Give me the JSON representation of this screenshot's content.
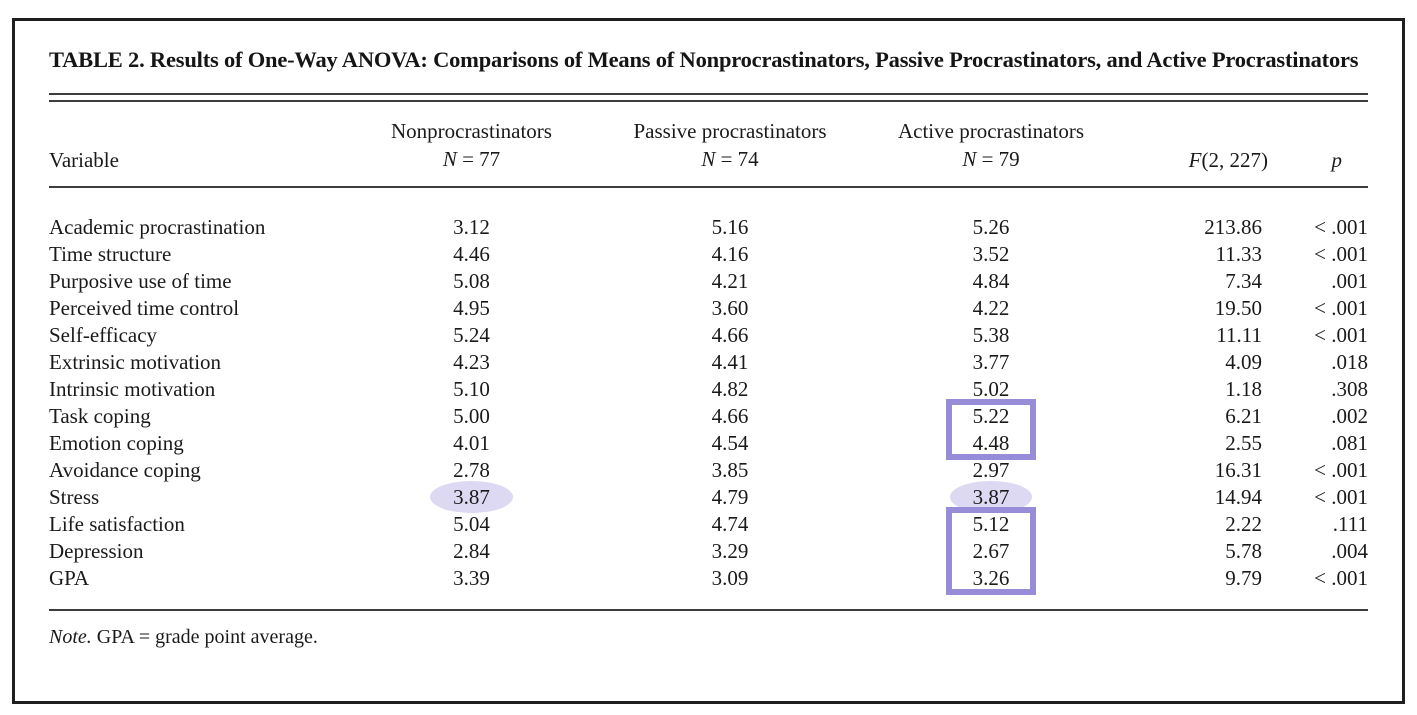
{
  "title": "TABLE 2. Results of One-Way ANOVA: Comparisons of Means of Nonprocrastinators, Passive Procrastinators, and Active Procrastinators",
  "columns": {
    "variable": "Variable",
    "groups": [
      {
        "name": "Nonprocrastinators",
        "n_label": "N",
        "n_value": "= 77"
      },
      {
        "name": "Passive procrastinators",
        "n_label": "N",
        "n_value": "= 74"
      },
      {
        "name": "Active procrastinators",
        "n_label": "N",
        "n_value": "= 79"
      }
    ],
    "f_label": "F",
    "f_value": "(2, 227)",
    "p": "p"
  },
  "rows": [
    {
      "variable": "Academic procrastination",
      "non": "3.12",
      "passive": "5.16",
      "active": "5.26",
      "f": "213.86",
      "p": "< .001"
    },
    {
      "variable": "Time structure",
      "non": "4.46",
      "passive": "4.16",
      "active": "3.52",
      "f": "11.33",
      "p": "< .001"
    },
    {
      "variable": "Purposive use of time",
      "non": "5.08",
      "passive": "4.21",
      "active": "4.84",
      "f": "7.34",
      "p": ".001"
    },
    {
      "variable": "Perceived time control",
      "non": "4.95",
      "passive": "3.60",
      "active": "4.22",
      "f": "19.50",
      "p": "< .001"
    },
    {
      "variable": "Self-efficacy",
      "non": "5.24",
      "passive": "4.66",
      "active": "5.38",
      "f": "11.11",
      "p": "< .001"
    },
    {
      "variable": "Extrinsic motivation",
      "non": "4.23",
      "passive": "4.41",
      "active": "3.77",
      "f": "4.09",
      "p": ".018"
    },
    {
      "variable": "Intrinsic motivation",
      "non": "5.10",
      "passive": "4.82",
      "active": "5.02",
      "f": "1.18",
      "p": ".308"
    },
    {
      "variable": "Task coping",
      "non": "5.00",
      "passive": "4.66",
      "active": "5.22",
      "f": "6.21",
      "p": ".002"
    },
    {
      "variable": "Emotion coping",
      "non": "4.01",
      "passive": "4.54",
      "active": "4.48",
      "f": "2.55",
      "p": ".081"
    },
    {
      "variable": "Avoidance coping",
      "non": "2.78",
      "passive": "3.85",
      "active": "2.97",
      "f": "16.31",
      "p": "< .001"
    },
    {
      "variable": "Stress",
      "non": "3.87",
      "passive": "4.79",
      "active": "3.87",
      "f": "14.94",
      "p": "< .001"
    },
    {
      "variable": "Life satisfaction",
      "non": "5.04",
      "passive": "4.74",
      "active": "5.12",
      "f": "2.22",
      "p": ".111"
    },
    {
      "variable": "Depression",
      "non": "2.84",
      "passive": "3.29",
      "active": "2.67",
      "f": "5.78",
      "p": ".004"
    },
    {
      "variable": "GPA",
      "non": "3.39",
      "passive": "3.09",
      "active": "3.26",
      "f": "9.79",
      "p": "< .001"
    }
  ],
  "note_label": "Note.",
  "note_text": " GPA = grade point average.",
  "highlights": {
    "box_color": "#968cd7",
    "ellipse_color": "#ded9f3",
    "boxes": [
      {
        "col": "active",
        "rows": [
          7,
          8
        ]
      },
      {
        "col": "active",
        "rows": [
          11,
          12,
          13
        ]
      }
    ],
    "ellipses": [
      {
        "col": "non",
        "row": 10
      },
      {
        "col": "active",
        "row": 10
      }
    ]
  }
}
